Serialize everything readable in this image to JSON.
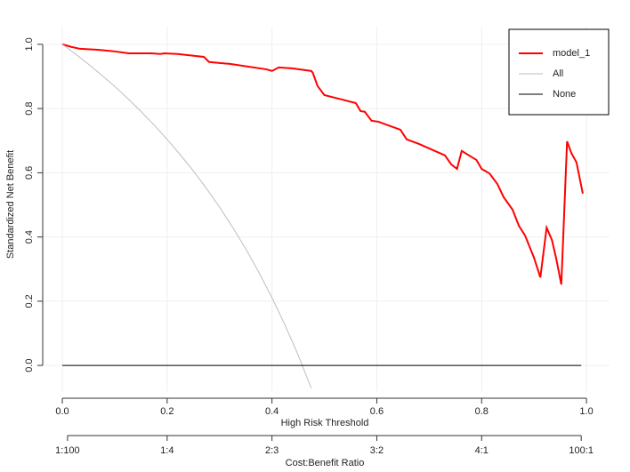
{
  "chart_data": {
    "type": "line",
    "xlabel": "High Risk Threshold",
    "ylabel": "Standardized Net Benefit",
    "xlim": [
      -0.034,
      1.044
    ],
    "ylim": [
      -0.08,
      1.055
    ],
    "xticks": [
      {
        "value": 0,
        "label": "0.0"
      },
      0.2,
      0.4,
      0.6,
      0.8,
      {
        "value": 1,
        "label": "1.0"
      }
    ],
    "yticks": [
      {
        "value": 0,
        "label": "0.0"
      },
      0.2,
      0.4,
      0.6,
      0.8,
      {
        "value": 1,
        "label": "1.0"
      }
    ],
    "grid": true,
    "legend": "topright",
    "x2label": "Cost:Benefit Ratio",
    "x2ticks": [
      {
        "value": 0.01,
        "label": "1:100"
      },
      {
        "value": 0.2,
        "label": "1:4"
      },
      {
        "value": 0.4,
        "label": "2:3"
      },
      {
        "value": 0.6,
        "label": "3:2"
      },
      {
        "value": 0.8,
        "label": "4:1"
      },
      {
        "value": 0.99,
        "label": "100:1"
      }
    ],
    "series": [
      {
        "name": "model_1",
        "color": "#ff0000",
        "width": 2,
        "x": [
          0,
          0.017,
          0.034,
          0.068,
          0.1,
          0.127,
          0.17,
          0.187,
          0.195,
          0.22,
          0.27,
          0.28,
          0.32,
          0.39,
          0.4,
          0.413,
          0.44,
          0.475,
          0.478,
          0.487,
          0.5,
          0.56,
          0.569,
          0.577,
          0.59,
          0.603,
          0.645,
          0.657,
          0.68,
          0.73,
          0.742,
          0.753,
          0.762,
          0.79,
          0.8,
          0.815,
          0.83,
          0.842,
          0.859,
          0.871,
          0.883,
          0.9,
          0.912,
          0.924,
          0.934,
          0.942,
          0.952,
          0.963,
          0.971,
          0.981,
          0.993
        ],
        "values": [
          1.0,
          0.992,
          0.986,
          0.983,
          0.978,
          0.972,
          0.972,
          0.97,
          0.972,
          0.97,
          0.961,
          0.945,
          0.939,
          0.922,
          0.917,
          0.928,
          0.925,
          0.917,
          0.911,
          0.87,
          0.842,
          0.817,
          0.792,
          0.79,
          0.762,
          0.759,
          0.734,
          0.704,
          0.69,
          0.654,
          0.626,
          0.612,
          0.668,
          0.64,
          0.612,
          0.598,
          0.565,
          0.524,
          0.485,
          0.435,
          0.404,
          0.335,
          0.274,
          0.429,
          0.391,
          0.335,
          0.252,
          0.698,
          0.662,
          0.632,
          0.535
        ]
      },
      {
        "name": "All",
        "color": "#bebebe",
        "width": 1,
        "x": [
          0,
          0.025,
          0.05,
          0.075,
          0.1,
          0.125,
          0.15,
          0.175,
          0.2,
          0.225,
          0.25,
          0.275,
          0.3,
          0.325,
          0.35,
          0.375,
          0.4,
          0.425,
          0.45,
          0.475
        ],
        "values": [
          1.0,
          0.97,
          0.938,
          0.904,
          0.869,
          0.831,
          0.791,
          0.749,
          0.704,
          0.656,
          0.606,
          0.551,
          0.493,
          0.43,
          0.363,
          0.29,
          0.211,
          0.125,
          0.032,
          -0.071
        ]
      },
      {
        "name": "None",
        "color": "#000000",
        "width": 1,
        "x": [
          0,
          0.99
        ],
        "values": [
          0,
          0
        ]
      }
    ]
  }
}
